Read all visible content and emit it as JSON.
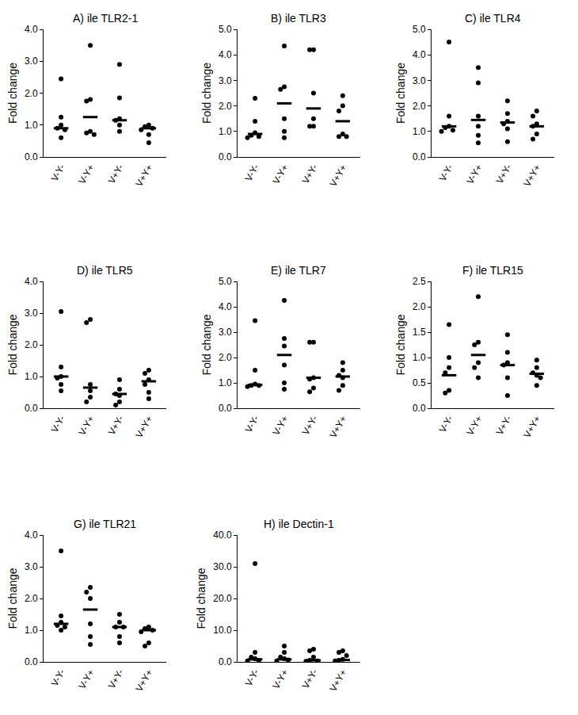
{
  "chart_data": [
    {
      "type": "scatter",
      "title": "A) ile TLR2-1",
      "y_label": "Fold change",
      "categories": [
        "V-Y-",
        "V-Y+",
        "V+Y-",
        "V+Y+"
      ],
      "points": [
        [
          2.45,
          1.25,
          1.0,
          0.9,
          0.85,
          0.6
        ],
        [
          3.5,
          1.8,
          1.75,
          0.8,
          0.75,
          0.7
        ],
        [
          2.9,
          1.85,
          1.2,
          1.15,
          1.0,
          0.8
        ],
        [
          1.0,
          0.95,
          0.9,
          0.85,
          0.7,
          0.45
        ]
      ],
      "medians": [
        0.9,
        1.25,
        1.15,
        0.9
      ],
      "ylim": [
        0,
        4
      ],
      "yticks": [
        {
          "value": 0,
          "label": "0.0"
        },
        {
          "value": 1,
          "label": "1.0"
        },
        {
          "value": 2,
          "label": "2.0"
        },
        {
          "value": 3,
          "label": "3.0"
        },
        {
          "value": 4,
          "label": "4.0"
        }
      ],
      "grid": false,
      "color": "#000000",
      "marker": "circle"
    },
    {
      "type": "scatter",
      "title": "B) ile TLR3",
      "y_label": "Fold change",
      "categories": [
        "V-Y-",
        "V-Y+",
        "V+Y-",
        "V+Y+"
      ],
      "points": [
        [
          2.3,
          1.4,
          0.95,
          0.85,
          0.8,
          0.75
        ],
        [
          4.35,
          2.75,
          2.65,
          1.5,
          1.0,
          0.75
        ],
        [
          4.2,
          4.2,
          2.5,
          1.5,
          1.2,
          1.2
        ],
        [
          2.4,
          2.0,
          1.8,
          0.9,
          0.8,
          0.8
        ]
      ],
      "medians": [
        0.9,
        2.1,
        1.9,
        1.4
      ],
      "ylim": [
        0,
        5
      ],
      "yticks": [
        {
          "value": 0,
          "label": "0.0"
        },
        {
          "value": 1,
          "label": "1.0"
        },
        {
          "value": 2,
          "label": "2.0"
        },
        {
          "value": 3,
          "label": "3.0"
        },
        {
          "value": 4,
          "label": "4.0"
        },
        {
          "value": 5,
          "label": "5.0"
        }
      ],
      "grid": false,
      "color": "#000000",
      "marker": "circle"
    },
    {
      "type": "scatter",
      "title": "C) ile TLR4",
      "y_label": "Fold change",
      "categories": [
        "V-Y-",
        "V-Y+",
        "V+Y-",
        "V+Y+"
      ],
      "points": [
        [
          4.5,
          1.6,
          1.2,
          1.15,
          1.05,
          1.0
        ],
        [
          3.5,
          2.9,
          1.6,
          1.2,
          0.85,
          0.55
        ],
        [
          2.2,
          1.7,
          1.4,
          1.3,
          1.1,
          0.6
        ],
        [
          1.8,
          1.6,
          1.3,
          1.2,
          0.9,
          0.7
        ]
      ],
      "medians": [
        1.2,
        1.45,
        1.35,
        1.2
      ],
      "ylim": [
        0,
        5
      ],
      "yticks": [
        {
          "value": 0,
          "label": "0.0"
        },
        {
          "value": 1,
          "label": "1.0"
        },
        {
          "value": 2,
          "label": "2.0"
        },
        {
          "value": 3,
          "label": "3.0"
        },
        {
          "value": 4,
          "label": "4.0"
        },
        {
          "value": 5,
          "label": "5.0"
        }
      ],
      "grid": false,
      "color": "#000000",
      "marker": "circle"
    },
    {
      "type": "scatter",
      "title": "D) ile TLR5",
      "y_label": "Fold change",
      "categories": [
        "V-Y-",
        "V-Y+",
        "V+Y-",
        "V+Y+"
      ],
      "points": [
        [
          3.05,
          1.3,
          1.0,
          0.95,
          0.75,
          0.55
        ],
        [
          2.8,
          2.7,
          0.75,
          0.55,
          0.35,
          0.2
        ],
        [
          0.9,
          0.6,
          0.45,
          0.4,
          0.2,
          0.1
        ],
        [
          1.2,
          1.1,
          0.9,
          0.75,
          0.5,
          0.3
        ]
      ],
      "medians": [
        1.0,
        0.65,
        0.45,
        0.85
      ],
      "ylim": [
        0,
        4
      ],
      "yticks": [
        {
          "value": 0,
          "label": "0.0"
        },
        {
          "value": 1,
          "label": "1.0"
        },
        {
          "value": 2,
          "label": "2.0"
        },
        {
          "value": 3,
          "label": "3.0"
        },
        {
          "value": 4,
          "label": "4.0"
        }
      ],
      "grid": false,
      "color": "#000000",
      "marker": "circle"
    },
    {
      "type": "scatter",
      "title": "E) ile TLR7",
      "y_label": "Fold change",
      "categories": [
        "V-Y-",
        "V-Y+",
        "V+Y-",
        "V+Y+"
      ],
      "points": [
        [
          3.45,
          1.5,
          0.95,
          0.9,
          0.9,
          0.85
        ],
        [
          4.25,
          2.75,
          2.45,
          1.7,
          1.0,
          0.75
        ],
        [
          2.6,
          2.6,
          1.2,
          1.15,
          0.8,
          0.65
        ],
        [
          1.8,
          1.5,
          1.3,
          1.2,
          0.9,
          0.7
        ]
      ],
      "medians": [
        0.92,
        2.1,
        1.2,
        1.25
      ],
      "ylim": [
        0,
        5
      ],
      "yticks": [
        {
          "value": 0,
          "label": "0.0"
        },
        {
          "value": 1,
          "label": "1.0"
        },
        {
          "value": 2,
          "label": "2.0"
        },
        {
          "value": 3,
          "label": "3.0"
        },
        {
          "value": 4,
          "label": "4.0"
        },
        {
          "value": 5,
          "label": "5.0"
        }
      ],
      "grid": false,
      "color": "#000000",
      "marker": "circle"
    },
    {
      "type": "scatter",
      "title": "F) ile TLR15",
      "y_label": "Fold change",
      "categories": [
        "V-Y-",
        "V-Y+",
        "V+Y-",
        "V+Y+"
      ],
      "points": [
        [
          1.65,
          1.0,
          0.8,
          0.7,
          0.35,
          0.3
        ],
        [
          2.2,
          1.3,
          1.25,
          0.9,
          0.8,
          0.6
        ],
        [
          1.45,
          1.1,
          0.9,
          0.85,
          0.6,
          0.25
        ],
        [
          0.95,
          0.8,
          0.7,
          0.65,
          0.6,
          0.45
        ]
      ],
      "medians": [
        0.65,
        1.05,
        0.85,
        0.68
      ],
      "ylim": [
        0,
        2.5
      ],
      "yticks": [
        {
          "value": 0,
          "label": "0.0"
        },
        0.5,
        {
          "value": 1,
          "label": "1.0"
        },
        1.5,
        {
          "value": 2,
          "label": "2.0"
        },
        2.5
      ],
      "grid": false,
      "color": "#000000",
      "marker": "circle"
    },
    {
      "type": "scatter",
      "title": "G) ile TLR21",
      "y_label": "Fold change",
      "categories": [
        "V-Y-",
        "V-Y+",
        "V+Y-",
        "V+Y+"
      ],
      "points": [
        [
          3.5,
          1.45,
          1.25,
          1.15,
          1.1,
          1.0
        ],
        [
          2.35,
          2.2,
          2.0,
          1.2,
          0.8,
          0.55
        ],
        [
          1.5,
          1.25,
          1.1,
          1.1,
          0.8,
          0.6
        ],
        [
          1.1,
          1.05,
          1.0,
          0.95,
          0.6,
          0.5
        ]
      ],
      "medians": [
        1.2,
        1.65,
        1.1,
        1.0
      ],
      "ylim": [
        0,
        4
      ],
      "yticks": [
        {
          "value": 0,
          "label": "0.0"
        },
        {
          "value": 1,
          "label": "1.0"
        },
        {
          "value": 2,
          "label": "2.0"
        },
        {
          "value": 3,
          "label": "3.0"
        },
        {
          "value": 4,
          "label": "4.0"
        }
      ],
      "grid": false,
      "color": "#000000",
      "marker": "circle"
    },
    {
      "type": "scatter",
      "title": "H) ile Dectin-1",
      "y_label": "Fold change",
      "categories": [
        "V-Y-",
        "V-Y+",
        "V+Y-",
        "V+Y+"
      ],
      "points": [
        [
          31.0,
          3.0,
          1.5,
          1.0,
          0.5,
          0.3
        ],
        [
          5.0,
          3.0,
          1.5,
          1.0,
          0.6,
          0.3
        ],
        [
          4.0,
          3.5,
          1.5,
          0.5,
          0.3,
          0.2
        ],
        [
          3.5,
          3.0,
          2.0,
          0.8,
          0.5,
          0.3
        ]
      ],
      "medians": [
        0.8,
        0.8,
        0.5,
        0.6
      ],
      "ylim": [
        0,
        40
      ],
      "yticks": [
        {
          "value": 0,
          "label": "0.0"
        },
        {
          "value": 10,
          "label": "10.0"
        },
        {
          "value": 20,
          "label": "20.0"
        },
        {
          "value": 30,
          "label": "30.0"
        },
        {
          "value": 40,
          "label": "40.0"
        }
      ],
      "grid": false,
      "color": "#000000",
      "marker": "circle"
    }
  ]
}
